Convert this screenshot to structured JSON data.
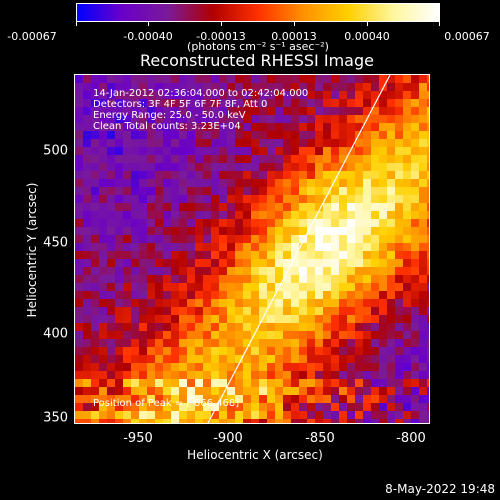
{
  "colorbar": {
    "ticks": [
      "-0.00067",
      "-0.00040",
      "-0.00013",
      "0.00013",
      "0.00040",
      "0.00067"
    ],
    "unit": "(photons cm⁻² s⁻¹ asec⁻²)",
    "colors": [
      "#0000ff",
      "#6a00c8",
      "#7a1a9a",
      "#b00000",
      "#ff3000",
      "#ff9000",
      "#ffd000",
      "#fff6a0",
      "#ffffff"
    ]
  },
  "image": {
    "title": "Reconstructed RHESSI Image",
    "info_lines": [
      "14-Jan-2012 02:36:04.000 to 02:42:04.000",
      "Detectors: 3F 4F 5F 6F 7F 8F, Att 0",
      "Energy Range: 25.0 - 50.0 keV",
      "Clean     Total counts: 3.23E+04"
    ],
    "peak_label": "Position of Peak = [-866,468]"
  },
  "axes": {
    "x_label": "Heliocentric X (arcsec)",
    "y_label": "Heliocentric Y (arcsec)",
    "x_ticks": [
      "-950",
      "-900",
      "-850",
      "-800"
    ],
    "y_ticks": [
      "500",
      "450",
      "400",
      "350"
    ]
  },
  "footer": {
    "date": "8-May-2022 19:48"
  }
}
